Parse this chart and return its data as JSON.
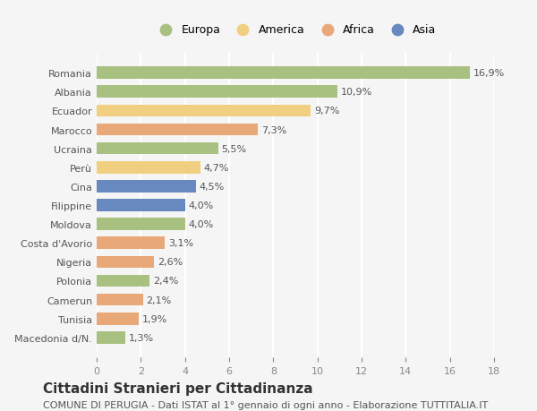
{
  "countries": [
    "Romania",
    "Albania",
    "Ecuador",
    "Marocco",
    "Ucraina",
    "Perù",
    "Cina",
    "Filippine",
    "Moldova",
    "Costa d'Avorio",
    "Nigeria",
    "Polonia",
    "Camerun",
    "Tunisia",
    "Macedonia d/N."
  ],
  "values": [
    16.9,
    10.9,
    9.7,
    7.3,
    5.5,
    4.7,
    4.5,
    4.0,
    4.0,
    3.1,
    2.6,
    2.4,
    2.1,
    1.9,
    1.3
  ],
  "labels": [
    "16,9%",
    "10,9%",
    "9,7%",
    "7,3%",
    "5,5%",
    "4,7%",
    "4,5%",
    "4,0%",
    "4,0%",
    "3,1%",
    "2,6%",
    "2,4%",
    "2,1%",
    "1,9%",
    "1,3%"
  ],
  "continents": [
    "Europa",
    "Europa",
    "America",
    "Africa",
    "Europa",
    "America",
    "Asia",
    "Asia",
    "Europa",
    "Africa",
    "Africa",
    "Europa",
    "Africa",
    "Africa",
    "Europa"
  ],
  "continent_colors": {
    "Europa": "#a8c080",
    "America": "#f0d080",
    "Africa": "#e8a878",
    "Asia": "#6888c0"
  },
  "legend_order": [
    "Europa",
    "America",
    "Africa",
    "Asia"
  ],
  "bg_color": "#f5f5f5",
  "grid_color": "#ffffff",
  "title": "Cittadini Stranieri per Cittadinanza",
  "subtitle": "COMUNE DI PERUGIA - Dati ISTAT al 1° gennaio di ogni anno - Elaborazione TUTTITALIA.IT",
  "xlim": [
    0,
    18
  ],
  "xticks": [
    0,
    2,
    4,
    6,
    8,
    10,
    12,
    14,
    16,
    18
  ],
  "label_fontsize": 8,
  "title_fontsize": 11,
  "subtitle_fontsize": 8
}
